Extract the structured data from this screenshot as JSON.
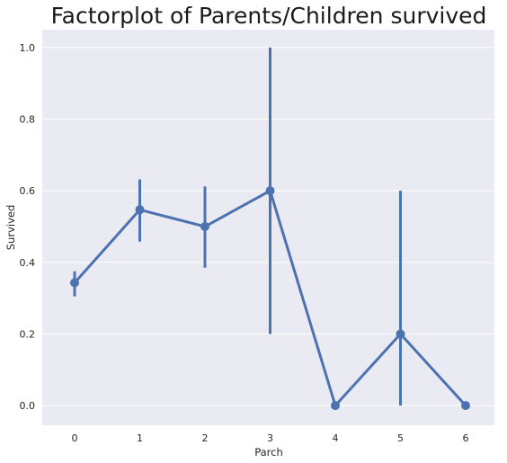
{
  "chart_data": {
    "type": "line",
    "title": "Factorplot of Parents/Children survived",
    "xlabel": "Parch",
    "ylabel": "Survived",
    "categories": [
      "0",
      "1",
      "2",
      "3",
      "4",
      "5",
      "6"
    ],
    "ylim": [
      -0.055,
      1.05
    ],
    "yticks": [
      "0.0",
      "0.2",
      "0.4",
      "0.6",
      "0.8",
      "1.0"
    ],
    "grid": true,
    "series": [
      {
        "values": [
          0.343,
          0.547,
          0.5,
          0.6,
          0.0,
          0.2,
          0.0
        ],
        "ci_low": [
          0.305,
          0.458,
          0.385,
          0.2,
          0.0,
          0.0,
          0.0
        ],
        "ci_high": [
          0.375,
          0.632,
          0.612,
          1.0,
          0.0,
          0.6,
          0.0
        ]
      }
    ],
    "colors": {
      "line": "#4c72b0",
      "background": "#eaeaf2",
      "grid": "#ffffff"
    }
  }
}
